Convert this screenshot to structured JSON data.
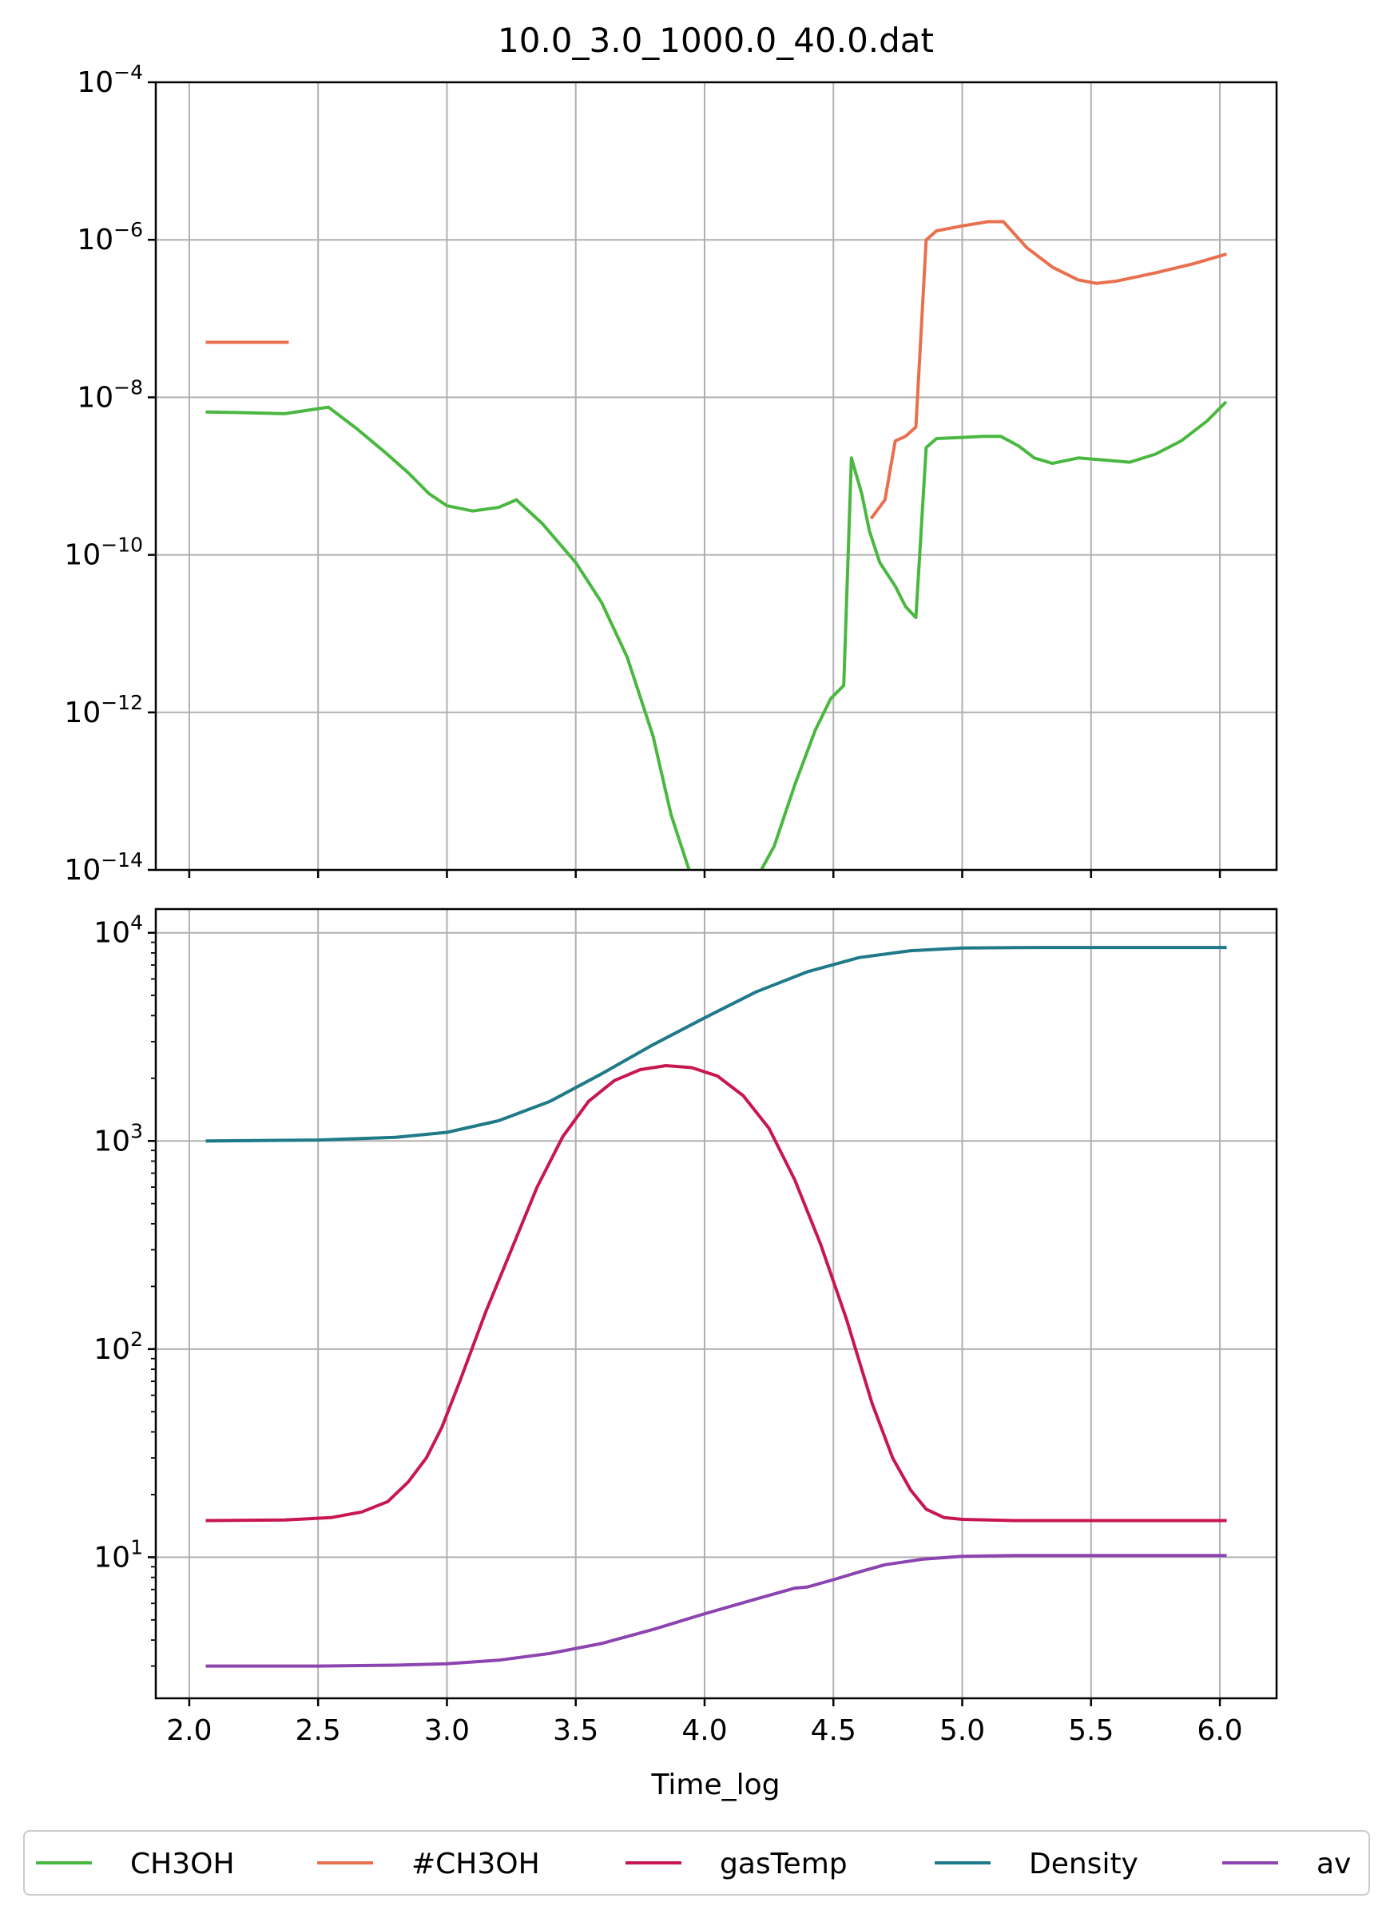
{
  "figure": {
    "title": "10.0_3.0_1000.0_40.0.dat",
    "xlabel": "Time_log",
    "legend_placement": "bottom",
    "legend": [
      {
        "label": "CH3OH",
        "color": "#4ab840"
      },
      {
        "label": "#CH3OH",
        "color": "#e8704e"
      },
      {
        "label": "gasTemp",
        "color": "#c8174e"
      },
      {
        "label": "Density",
        "color": "#1f7a88"
      },
      {
        "label": "av",
        "color": "#8c44b0"
      }
    ]
  },
  "chart_data": [
    {
      "type": "line",
      "yscale": "log",
      "xlim": [
        1.87,
        6.22
      ],
      "ylim": [
        1e-14,
        0.0001
      ],
      "x_ticks": [
        "2.0",
        "2.5",
        "3.0",
        "3.5",
        "4.0",
        "4.5",
        "5.0",
        "5.5",
        "6.0"
      ],
      "y_ticks": [
        {
          "base": "10",
          "exp": "−4"
        },
        {
          "base": "10",
          "exp": "−6"
        },
        {
          "base": "10",
          "exp": "−8"
        },
        {
          "base": "10",
          "exp": "−10"
        },
        {
          "base": "10",
          "exp": "−12"
        },
        {
          "base": "10",
          "exp": "−14"
        }
      ],
      "grid": true,
      "series": [
        {
          "name": "CH3OH",
          "color": "#4ab840",
          "points": [
            [
              2.07,
              6.5e-09
            ],
            [
              2.2,
              6.4e-09
            ],
            [
              2.37,
              6.2e-09
            ],
            [
              2.54,
              7.5e-09
            ],
            [
              2.65,
              4e-09
            ],
            [
              2.76,
              2e-09
            ],
            [
              2.85,
              1.1e-09
            ],
            [
              2.93,
              6e-10
            ],
            [
              3.0,
              4.2e-10
            ],
            [
              3.1,
              3.6e-10
            ],
            [
              3.2,
              4e-10
            ],
            [
              3.27,
              5e-10
            ],
            [
              3.37,
              2.5e-10
            ],
            [
              3.5,
              8e-11
            ],
            [
              3.6,
              2.5e-11
            ],
            [
              3.7,
              5e-12
            ],
            [
              3.8,
              5e-13
            ],
            [
              3.87,
              5e-14
            ],
            [
              3.94,
              1e-14
            ]
          ]
        },
        {
          "name": "CH3OH",
          "color": "#4ab840",
          "points": [
            [
              4.22,
              1e-14
            ],
            [
              4.27,
              2e-14
            ],
            [
              4.35,
              1.2e-13
            ],
            [
              4.43,
              6e-13
            ],
            [
              4.49,
              1.5e-12
            ],
            [
              4.54,
              2.2e-12
            ],
            [
              4.57,
              1.7e-09
            ],
            [
              4.61,
              6e-10
            ],
            [
              4.64,
              2e-10
            ],
            [
              4.68,
              8e-11
            ],
            [
              4.74,
              4e-11
            ],
            [
              4.78,
              2.2e-11
            ],
            [
              4.82,
              1.6e-11
            ],
            [
              4.86,
              2.3e-09
            ],
            [
              4.9,
              3e-09
            ],
            [
              5.0,
              3.1e-09
            ],
            [
              5.08,
              3.2e-09
            ],
            [
              5.15,
              3.2e-09
            ],
            [
              5.22,
              2.4e-09
            ],
            [
              5.28,
              1.7e-09
            ],
            [
              5.35,
              1.45e-09
            ],
            [
              5.45,
              1.7e-09
            ],
            [
              5.55,
              1.6e-09
            ],
            [
              5.65,
              1.5e-09
            ],
            [
              5.75,
              1.9e-09
            ],
            [
              5.85,
              2.8e-09
            ],
            [
              5.95,
              5e-09
            ],
            [
              6.02,
              8.5e-09
            ]
          ]
        },
        {
          "name": "#CH3OH",
          "color": "#e8704e",
          "points": [
            [
              2.07,
              5e-08
            ],
            [
              2.38,
              5e-08
            ]
          ]
        },
        {
          "name": "#CH3OH",
          "color": "#e8704e",
          "points": [
            [
              4.65,
              3e-10
            ],
            [
              4.7,
              5e-10
            ],
            [
              4.74,
              2.8e-09
            ],
            [
              4.78,
              3.2e-09
            ],
            [
              4.82,
              4.2e-09
            ],
            [
              4.86,
              1e-06
            ],
            [
              4.9,
              1.3e-06
            ],
            [
              5.0,
              1.5e-06
            ],
            [
              5.1,
              1.7e-06
            ],
            [
              5.16,
              1.7e-06
            ],
            [
              5.25,
              8e-07
            ],
            [
              5.35,
              4.5e-07
            ],
            [
              5.45,
              3.1e-07
            ],
            [
              5.52,
              2.8e-07
            ],
            [
              5.6,
              3e-07
            ],
            [
              5.75,
              3.8e-07
            ],
            [
              5.9,
              5e-07
            ],
            [
              6.02,
              6.5e-07
            ]
          ]
        }
      ]
    },
    {
      "type": "line",
      "yscale": "log",
      "xlim": [
        1.87,
        6.22
      ],
      "ylim": [
        2.1,
        13000
      ],
      "x_ticks": [
        "2.0",
        "2.5",
        "3.0",
        "3.5",
        "4.0",
        "4.5",
        "5.0",
        "5.5",
        "6.0"
      ],
      "y_ticks": [
        {
          "base": "10",
          "exp": "4"
        },
        {
          "base": "10",
          "exp": "3"
        },
        {
          "base": "10",
          "exp": "2"
        },
        {
          "base": "10",
          "exp": "1"
        }
      ],
      "grid": true,
      "series": [
        {
          "name": "Density",
          "color": "#1f7a88",
          "points": [
            [
              2.07,
              1000
            ],
            [
              2.5,
              1010
            ],
            [
              2.8,
              1040
            ],
            [
              3.0,
              1100
            ],
            [
              3.2,
              1250
            ],
            [
              3.4,
              1550
            ],
            [
              3.6,
              2100
            ],
            [
              3.8,
              2900
            ],
            [
              4.0,
              3900
            ],
            [
              4.2,
              5200
            ],
            [
              4.4,
              6500
            ],
            [
              4.6,
              7600
            ],
            [
              4.8,
              8200
            ],
            [
              5.0,
              8450
            ],
            [
              5.3,
              8500
            ],
            [
              6.02,
              8500
            ]
          ]
        },
        {
          "name": "gasTemp",
          "color": "#c8174e",
          "points": [
            [
              2.07,
              15
            ],
            [
              2.37,
              15.1
            ],
            [
              2.55,
              15.5
            ],
            [
              2.67,
              16.5
            ],
            [
              2.77,
              18.5
            ],
            [
              2.85,
              23
            ],
            [
              2.92,
              30
            ],
            [
              2.98,
              42
            ],
            [
              3.05,
              70
            ],
            [
              3.15,
              150
            ],
            [
              3.25,
              300
            ],
            [
              3.35,
              600
            ],
            [
              3.45,
              1050
            ],
            [
              3.55,
              1550
            ],
            [
              3.65,
              1950
            ],
            [
              3.75,
              2200
            ],
            [
              3.85,
              2300
            ],
            [
              3.95,
              2250
            ],
            [
              4.05,
              2050
            ],
            [
              4.15,
              1650
            ],
            [
              4.25,
              1150
            ],
            [
              4.35,
              650
            ],
            [
              4.45,
              320
            ],
            [
              4.55,
              140
            ],
            [
              4.65,
              55
            ],
            [
              4.73,
              30
            ],
            [
              4.8,
              21
            ],
            [
              4.86,
              17
            ],
            [
              4.93,
              15.5
            ],
            [
              5.0,
              15.2
            ],
            [
              5.2,
              15
            ],
            [
              6.02,
              15
            ]
          ]
        },
        {
          "name": "av",
          "color": "#8c44b0",
          "points": [
            [
              2.07,
              3.0
            ],
            [
              2.5,
              3.0
            ],
            [
              2.8,
              3.03
            ],
            [
              3.0,
              3.08
            ],
            [
              3.2,
              3.2
            ],
            [
              3.4,
              3.45
            ],
            [
              3.6,
              3.85
            ],
            [
              3.8,
              4.5
            ],
            [
              4.0,
              5.35
            ],
            [
              4.2,
              6.3
            ],
            [
              4.35,
              7.1
            ],
            [
              4.4,
              7.2
            ],
            [
              4.5,
              7.8
            ],
            [
              4.6,
              8.5
            ],
            [
              4.7,
              9.2
            ],
            [
              4.85,
              9.8
            ],
            [
              5.0,
              10.1
            ],
            [
              5.2,
              10.2
            ],
            [
              6.02,
              10.2
            ]
          ]
        }
      ]
    }
  ]
}
